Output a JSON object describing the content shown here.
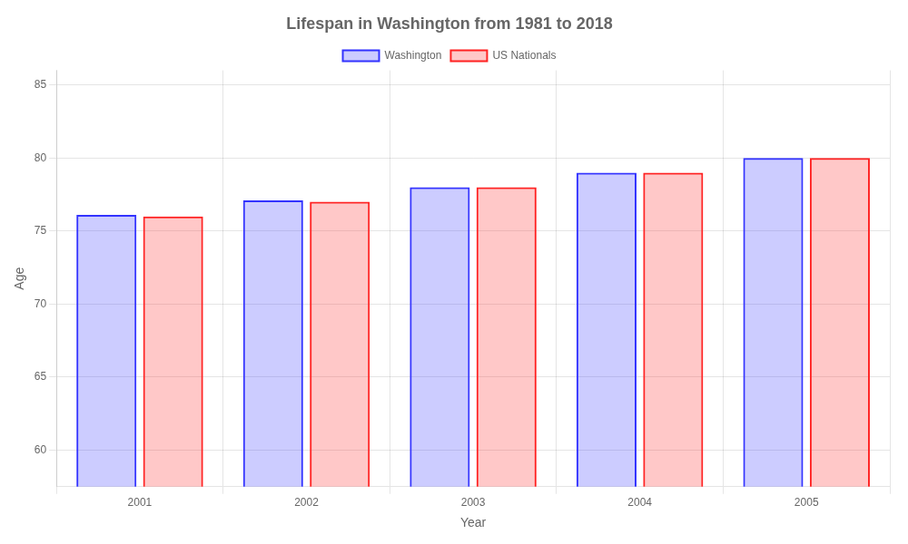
{
  "chart_data": {
    "type": "bar",
    "title": "Lifespan in Washington from 1981 to 2018",
    "x_label": "Year",
    "y_label": "Age",
    "categories": [
      "2001",
      "2002",
      "2003",
      "2004",
      "2005"
    ],
    "series": [
      {
        "name": "Washington",
        "color": "#3333ff",
        "values": [
          76.1,
          77.1,
          78.0,
          79.0,
          80.0
        ]
      },
      {
        "name": "US Nationals",
        "color": "#ff2222",
        "values": [
          76.0,
          77.0,
          78.0,
          79.0,
          80.0
        ]
      }
    ],
    "ylim": [
      57.5,
      86
    ],
    "yticks": [
      60,
      65,
      70,
      75,
      80,
      85
    ],
    "grid": true,
    "legend": "top"
  }
}
